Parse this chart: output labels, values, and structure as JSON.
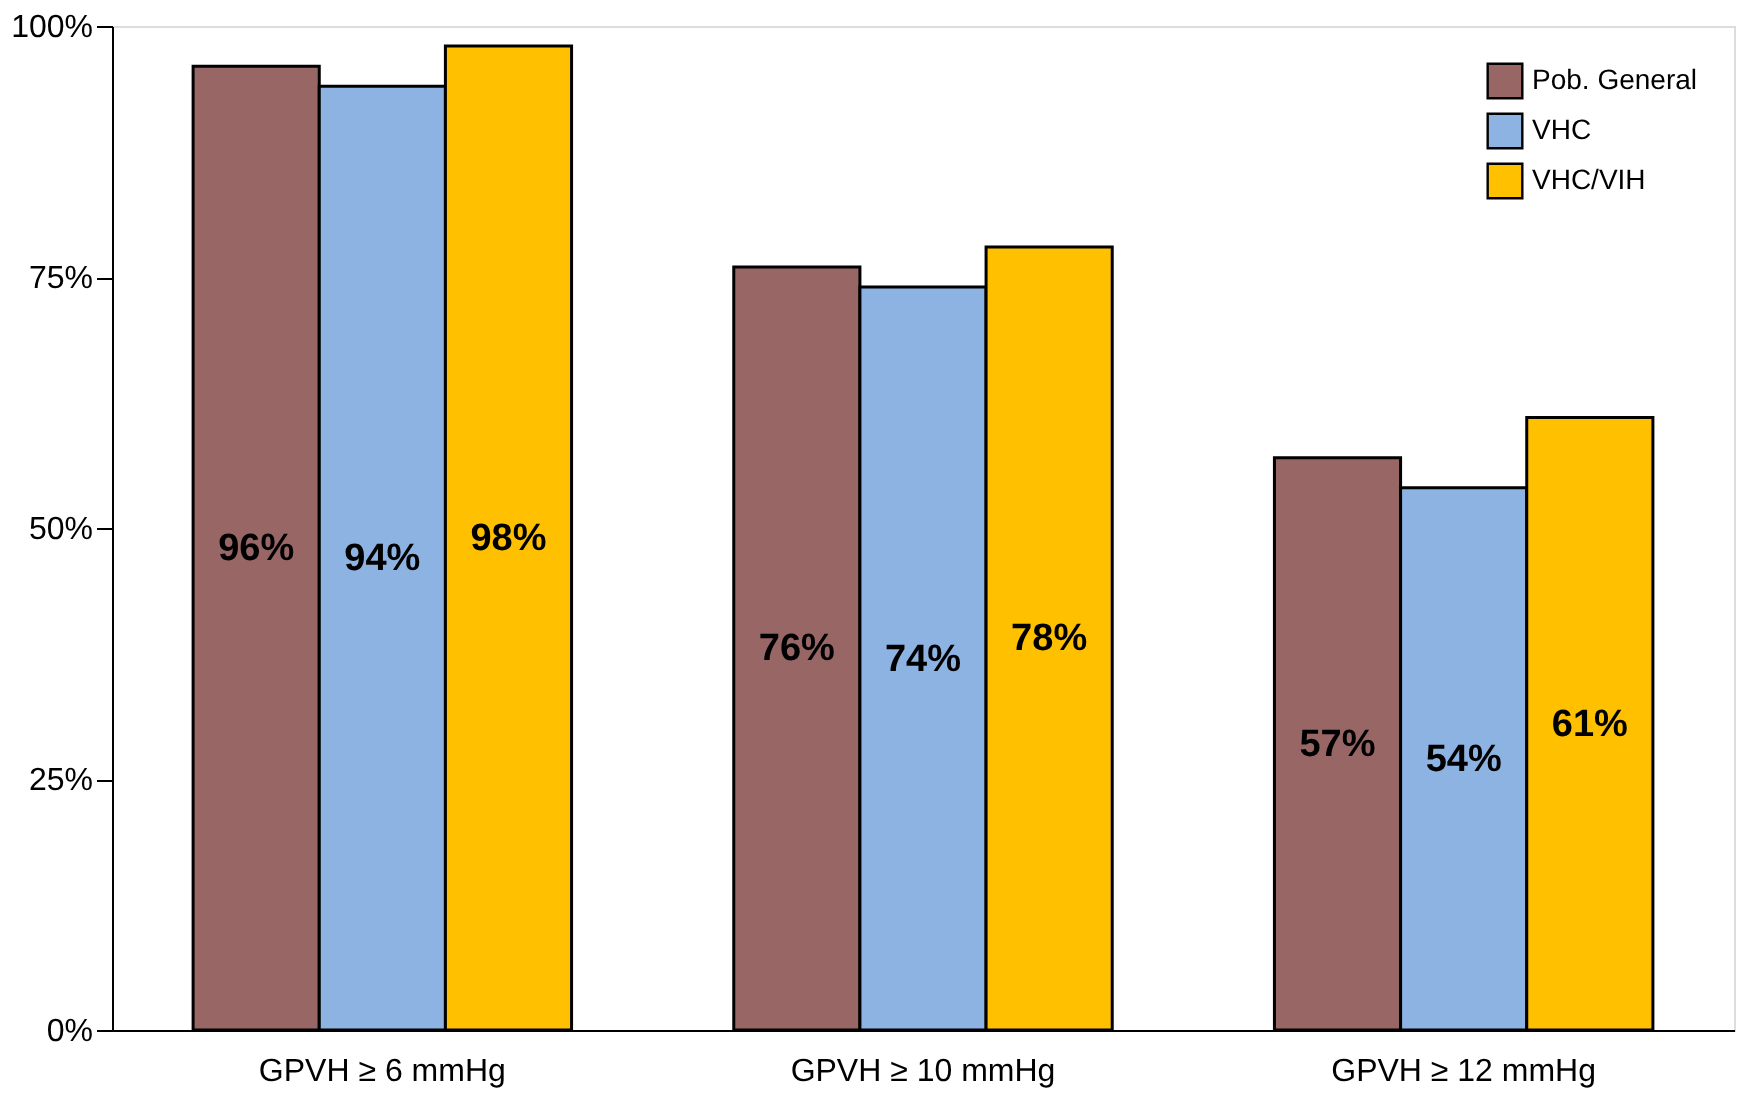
{
  "chart_data": {
    "type": "bar",
    "categories": [
      "GPVH ≥ 6 mmHg",
      "GPVH ≥ 10 mmHg",
      "GPVH ≥ 12 mmHg"
    ],
    "series": [
      {
        "name": "Pob. General",
        "color": "#996666",
        "values": [
          96,
          76,
          57
        ],
        "value_labels": [
          "96%",
          "76%",
          "57%"
        ]
      },
      {
        "name": "VHC",
        "color": "#8db3e2",
        "values": [
          94,
          74,
          54
        ],
        "value_labels": [
          "94%",
          "74%",
          "54%"
        ]
      },
      {
        "name": "VHC/VIH",
        "color": "#ffc000",
        "values": [
          98,
          78,
          61
        ],
        "value_labels": [
          "98%",
          "78%",
          "61%"
        ]
      }
    ],
    "ylim": [
      0,
      100
    ],
    "yticks": [
      {
        "value": 0,
        "label": "0%"
      },
      {
        "value": 25,
        "label": "25%"
      },
      {
        "value": 50,
        "label": "50%"
      },
      {
        "value": 75,
        "label": "75%"
      },
      {
        "value": 100,
        "label": "100%"
      }
    ],
    "grid": false,
    "legend": "top right"
  }
}
